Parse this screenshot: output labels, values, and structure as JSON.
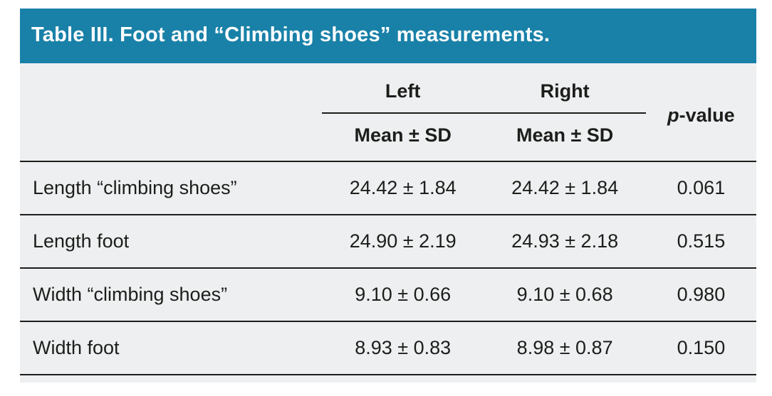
{
  "title": "Table III. Foot and “Climbing shoes” measurements.",
  "colors": {
    "header_bg": "#1981a8",
    "sheet_bg": "#edeff0",
    "text": "#1d1d1b",
    "title_text": "#ffffff"
  },
  "table": {
    "group_headers": {
      "left": "Left",
      "right": "Right",
      "p_italic": "p",
      "p_rest": "-value"
    },
    "subheaders": {
      "left": "Mean ± SD",
      "right": "Mean ± SD"
    },
    "rows": [
      {
        "label": "Length “climbing shoes”",
        "left": "24.42 ± 1.84",
        "right": "24.42 ± 1.84",
        "p": "0.061"
      },
      {
        "label": "Length foot",
        "left": "24.90 ± 2.19",
        "right": "24.93 ± 2.18",
        "p": "0.515"
      },
      {
        "label": "Width “climbing shoes”",
        "left": "9.10 ± 0.66",
        "right": "9.10 ± 0.68",
        "p": "0.980"
      },
      {
        "label": "Width foot",
        "left": "8.93 ± 0.83",
        "right": "8.98 ± 0.87",
        "p": "0.150"
      }
    ]
  }
}
